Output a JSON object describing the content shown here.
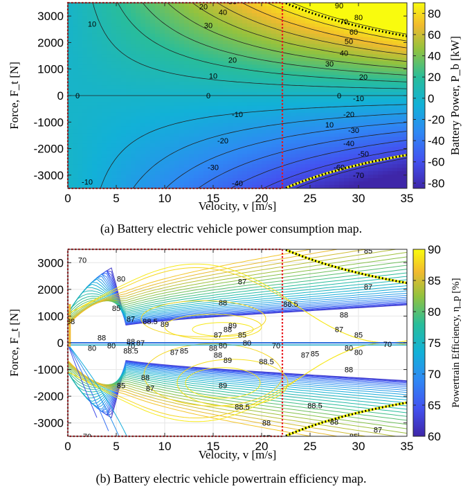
{
  "chart_data": [
    {
      "type": "heatmap",
      "id": "a",
      "caption": "(a) Battery electric vehicle power consumption map.",
      "xlabel": "Velocity, v [m/s]",
      "ylabel": "Force, F_t [N]",
      "colorbar_label": "Battery Power, P_b [kW]",
      "xlim": [
        0,
        35
      ],
      "ylim": [
        -3500,
        3500
      ],
      "xticks": [
        "0",
        "5",
        "10",
        "15",
        "20",
        "25",
        "30",
        "35"
      ],
      "yticks": [
        "3000",
        "2000",
        "1000",
        "0",
        "-1000",
        "-2000",
        "-3000"
      ],
      "colorbar_ticks": [
        "80",
        "60",
        "40",
        "20",
        "0",
        "-20",
        "-40",
        "-60",
        "-80"
      ],
      "clim": [
        -85,
        90
      ],
      "contour_levels": [
        -70,
        -60,
        -50,
        -40,
        -30,
        -20,
        -10,
        0,
        10,
        20,
        30,
        40,
        50,
        60,
        70,
        80,
        90
      ],
      "contour_labels": [
        {
          "text": "0",
          "v": 1,
          "f": 0
        },
        {
          "text": "0",
          "v": 14.5,
          "f": 0
        },
        {
          "text": "0",
          "v": 28,
          "f": 0
        },
        {
          "text": "10",
          "v": 2.5,
          "f": 2700
        },
        {
          "text": "10",
          "v": 15,
          "f": 750
        },
        {
          "text": "10",
          "v": 27,
          "f": -1100
        },
        {
          "text": "-10",
          "v": 2,
          "f": -3250
        },
        {
          "text": "-10",
          "v": 17.5,
          "f": -700
        },
        {
          "text": "-10",
          "v": 30,
          "f": -100
        },
        {
          "text": "20",
          "v": 14,
          "f": 3350
        },
        {
          "text": "20",
          "v": 17,
          "f": 1350
        },
        {
          "text": "20",
          "v": 30.5,
          "f": 700
        },
        {
          "text": "-20",
          "v": 16,
          "f": -1700
        },
        {
          "text": "-20",
          "v": 29,
          "f": -700
        },
        {
          "text": "30",
          "v": 14.5,
          "f": 2650
        },
        {
          "text": "30",
          "v": 27,
          "f": 1200
        },
        {
          "text": "-30",
          "v": 15,
          "f": -2700
        },
        {
          "text": "-30",
          "v": 29.5,
          "f": -1300
        },
        {
          "text": "40",
          "v": 16,
          "f": 3150
        },
        {
          "text": "40",
          "v": 28.5,
          "f": 1600
        },
        {
          "text": "-40",
          "v": 17.5,
          "f": -3300
        },
        {
          "text": "-40",
          "v": 29,
          "f": -1800
        },
        {
          "text": "50",
          "v": 17,
          "f": 3550
        },
        {
          "text": "50",
          "v": 29,
          "f": 2050
        },
        {
          "text": "-50",
          "v": 30.5,
          "f": -2200
        },
        {
          "text": "60",
          "v": 17,
          "f": 3800
        },
        {
          "text": "60",
          "v": 29.5,
          "f": 2400
        },
        {
          "text": "-60",
          "v": 28,
          "f": -2700
        },
        {
          "text": "70",
          "v": 28.5,
          "f": 2800
        },
        {
          "text": "-70",
          "v": 30,
          "f": -3000
        },
        {
          "text": "80",
          "v": 30,
          "f": 2950
        },
        {
          "text": "90",
          "v": 28,
          "f": 3400
        }
      ]
    },
    {
      "type": "heatmap",
      "id": "b",
      "caption": "(b) Battery electric vehicle powertrain efficiency map.",
      "xlabel": "Velocity, v [m/s]",
      "ylabel": "Force, F_t [N]",
      "colorbar_label": "Powertrain Efficiency, η_p [%]",
      "xlim": [
        0,
        35
      ],
      "ylim": [
        -3500,
        3500
      ],
      "xticks": [
        "0",
        "5",
        "10",
        "15",
        "20",
        "25",
        "30",
        "35"
      ],
      "yticks": [
        "3000",
        "2000",
        "1000",
        "0",
        "-1000",
        "-2000",
        "-3000"
      ],
      "colorbar_ticks": [
        "90",
        "85",
        "80",
        "75",
        "70",
        "65",
        "60"
      ],
      "clim": [
        60,
        90
      ],
      "contour_labels": [
        {
          "text": "70",
          "v": 1.5,
          "f": 3100
        },
        {
          "text": "80",
          "v": 5.5,
          "f": 2400
        },
        {
          "text": "85",
          "v": 5,
          "f": 1300
        },
        {
          "text": "87",
          "v": 6.5,
          "f": 900
        },
        {
          "text": "88.5",
          "v": 8.5,
          "f": 800
        },
        {
          "text": "89",
          "v": 10,
          "f": 700
        },
        {
          "text": "88",
          "v": 3.5,
          "f": 200
        },
        {
          "text": "80",
          "v": 2.5,
          "f": -200
        },
        {
          "text": "80",
          "v": 4.5,
          "f": -100
        },
        {
          "text": "88",
          "v": 6.5,
          "f": 50
        },
        {
          "text": "87",
          "v": 7.5,
          "f": 0
        },
        {
          "text": "70",
          "v": 6.5,
          "f": -120
        },
        {
          "text": "88.5",
          "v": 6.5,
          "f": -300
        },
        {
          "text": "87",
          "v": 11,
          "f": -350
        },
        {
          "text": "85",
          "v": 12,
          "f": -300
        },
        {
          "text": "87",
          "v": 15.5,
          "f": 300
        },
        {
          "text": "88",
          "v": 16.5,
          "f": 500
        },
        {
          "text": "89",
          "v": 17,
          "f": 650
        },
        {
          "text": "85",
          "v": 18,
          "f": 300
        },
        {
          "text": "80",
          "v": 16,
          "f": -100
        },
        {
          "text": "80",
          "v": 18.5,
          "f": 0
        },
        {
          "text": "70",
          "v": 21.5,
          "f": -100
        },
        {
          "text": "88",
          "v": 15.5,
          "f": -450
        },
        {
          "text": "89",
          "v": 16.5,
          "f": -650
        },
        {
          "text": "88.5",
          "v": 20.5,
          "f": -700
        },
        {
          "text": "89",
          "v": 16,
          "f": -1600
        },
        {
          "text": "88.5",
          "v": 18,
          "f": -2400
        },
        {
          "text": "88",
          "v": 20.5,
          "f": -3000
        },
        {
          "text": "87",
          "v": 20.5,
          "f": -3550
        },
        {
          "text": "88.5",
          "v": 25.5,
          "f": -2350
        },
        {
          "text": "88",
          "v": 27.5,
          "f": -2950
        },
        {
          "text": "85",
          "v": 5.5,
          "f": -1600
        },
        {
          "text": "88",
          "v": 8,
          "f": -1300
        },
        {
          "text": "87",
          "v": 8.5,
          "f": -1700
        },
        {
          "text": "70",
          "v": 2,
          "f": -3500
        },
        {
          "text": "87",
          "v": 18,
          "f": 2300
        },
        {
          "text": "88",
          "v": 16,
          "f": 1500
        },
        {
          "text": "88.5",
          "v": 23,
          "f": 1450
        },
        {
          "text": "88",
          "v": 28.5,
          "f": 1050
        },
        {
          "text": "87",
          "v": 31,
          "f": 2100
        },
        {
          "text": "85",
          "v": 31,
          "f": 3450
        },
        {
          "text": "87",
          "v": 28,
          "f": 500
        },
        {
          "text": "85",
          "v": 30,
          "f": 300
        },
        {
          "text": "80",
          "v": 29,
          "f": -200
        },
        {
          "text": "70",
          "v": 33,
          "f": -50
        },
        {
          "text": "87",
          "v": 24.5,
          "f": -450
        },
        {
          "text": "85",
          "v": 25.5,
          "f": -400
        },
        {
          "text": "80",
          "v": 30,
          "f": -350
        },
        {
          "text": "88",
          "v": 29,
          "f": -1000
        },
        {
          "text": "87",
          "v": 32,
          "f": -3250
        },
        {
          "text": "85",
          "v": 29.5,
          "f": -3500
        },
        {
          "text": "88",
          "v": 0.3,
          "f": 800
        },
        {
          "text": "88",
          "v": 15,
          "f": -200
        }
      ]
    }
  ]
}
